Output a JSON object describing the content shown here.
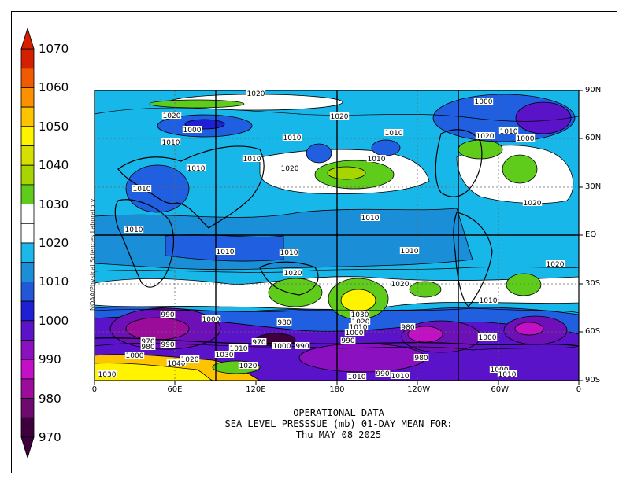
{
  "colorbar": {
    "labels": [
      "1070",
      "1060",
      "1050",
      "1040",
      "1030",
      "1020",
      "1010",
      "1000",
      "990",
      "980",
      "970"
    ],
    "colors": [
      "#d41f00",
      "#f05a00",
      "#fb9100",
      "#ffc400",
      "#fff300",
      "#d6df00",
      "#a8d400",
      "#5fcc1c",
      "#ffffff",
      "#ffffff",
      "#1ab9ea",
      "#1a8ed6",
      "#2258d8",
      "#1f1fd6",
      "#5a13c8",
      "#8a10c0",
      "#c310c6",
      "#9c0c9a",
      "#6e0a6e",
      "#3d003d"
    ]
  },
  "credit": "NOAA/Physical Sciences Laboratory",
  "map": {
    "ocean_colors": {
      "low": "#6d10b8",
      "midlow": "#1f5fe0",
      "mid": "#1a8ed6",
      "base": "#18b7ea",
      "high": "#ffffff",
      "vhigh": "#5fcc1c"
    },
    "lon_labels": [
      "0",
      "60E",
      "120E",
      "180",
      "120W",
      "60W",
      "0"
    ],
    "lat_labels": [
      "90N",
      "60N",
      "30N",
      "EQ",
      "30S",
      "60S",
      "90S"
    ],
    "contour_labels": [
      {
        "t": "1020"
      },
      {
        "t": "1020"
      },
      {
        "t": "1000"
      },
      {
        "t": "1010"
      },
      {
        "t": "1010"
      },
      {
        "t": "1010"
      },
      {
        "t": "1010"
      },
      {
        "t": "1020"
      },
      {
        "t": "1020"
      },
      {
        "t": "1010"
      },
      {
        "t": "1010"
      },
      {
        "t": "1010"
      },
      {
        "t": "1010"
      },
      {
        "t": "1000"
      },
      {
        "t": "1020"
      },
      {
        "t": "1010"
      },
      {
        "t": "1000"
      },
      {
        "t": "1020"
      },
      {
        "t": "1010"
      },
      {
        "t": "1010"
      },
      {
        "t": "1010"
      },
      {
        "t": "1010"
      },
      {
        "t": "1020"
      },
      {
        "t": "1020"
      },
      {
        "t": "1020"
      },
      {
        "t": "1010"
      },
      {
        "t": "990"
      },
      {
        "t": "1000"
      },
      {
        "t": "980"
      },
      {
        "t": "1030"
      },
      {
        "t": "1020"
      },
      {
        "t": "1010"
      },
      {
        "t": "1000"
      },
      {
        "t": "980"
      },
      {
        "t": "990"
      },
      {
        "t": "1000"
      },
      {
        "t": "970"
      },
      {
        "t": "980"
      },
      {
        "t": "990"
      },
      {
        "t": "1000"
      },
      {
        "t": "1010"
      },
      {
        "t": "970"
      },
      {
        "t": "1000"
      },
      {
        "t": "990"
      },
      {
        "t": "980"
      },
      {
        "t": "1030"
      },
      {
        "t": "1040"
      },
      {
        "t": "1020"
      },
      {
        "t": "1020"
      },
      {
        "t": "1030"
      },
      {
        "t": "1010"
      },
      {
        "t": "990"
      },
      {
        "t": "1000"
      },
      {
        "t": "1010"
      },
      {
        "t": "1010"
      }
    ]
  },
  "title": {
    "line1": "OPERATIONAL DATA",
    "line2": "SEA LEVEL PRESSSUE (mb)   01-DAY MEAN FOR:",
    "line3": "Thu MAY 08 2025"
  }
}
